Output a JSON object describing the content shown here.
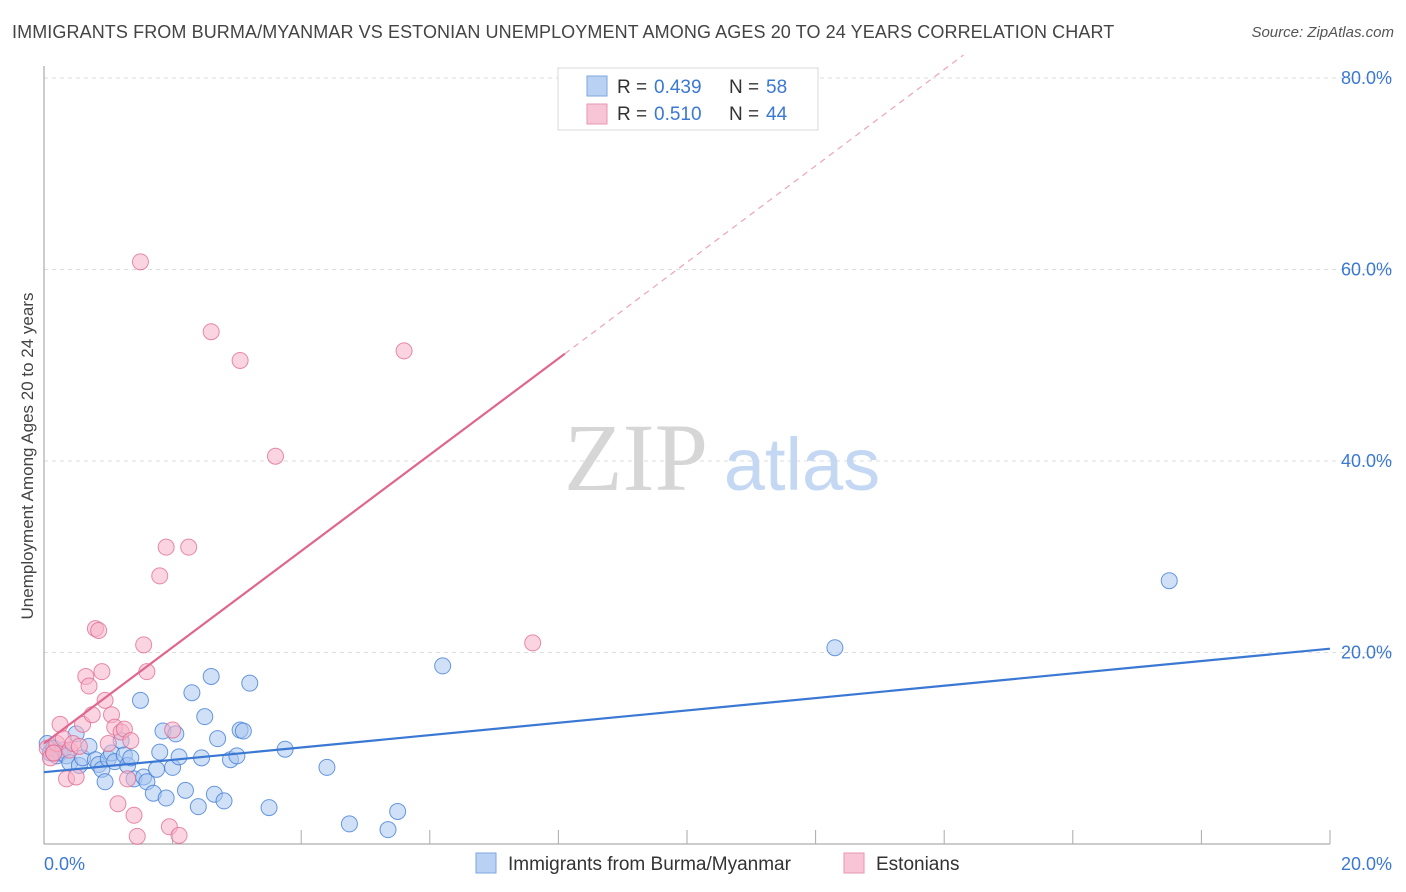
{
  "title": "IMMIGRANTS FROM BURMA/MYANMAR VS ESTONIAN UNEMPLOYMENT AMONG AGES 20 TO 24 YEARS CORRELATION CHART",
  "source": "Source: ZipAtlas.com",
  "watermark": {
    "zip": "ZIP",
    "atlas": "atlas"
  },
  "colors": {
    "blue": "#3a78d4",
    "blue_fill": "#a9c7f0",
    "pink": "#e0668f",
    "pink_fill": "#f5b3c9",
    "tick_text": "#3a78d4",
    "grid": "#dddddd"
  },
  "chart_data": {
    "type": "scatter",
    "xlabel": "",
    "ylabel": "Unemployment Among Ages 20 to 24 years",
    "xlim": [
      0,
      20
    ],
    "ylim": [
      0,
      80
    ],
    "x_tick_labels": {
      "left": "0.0%",
      "right": "20.0%"
    },
    "y_ticks": [
      {
        "value": 20,
        "label": "20.0%"
      },
      {
        "value": 40,
        "label": "40.0%"
      },
      {
        "value": 60,
        "label": "60.0%"
      },
      {
        "value": 80,
        "label": "80.0%"
      }
    ],
    "legend_stats": [
      {
        "r_label": "R =",
        "r_value": "0.439",
        "n_label": "N =",
        "n_value": "58"
      },
      {
        "r_label": "R =",
        "r_value": "0.510",
        "n_label": "N =",
        "n_value": "44"
      }
    ],
    "series": [
      {
        "name": "Immigrants from Burma/Myanmar",
        "color": "blue",
        "trend": {
          "x0": 0,
          "y0": 7.5,
          "x1": 20,
          "y1": 20.4,
          "dashed_to": null
        },
        "points": [
          [
            0.05,
            10.5
          ],
          [
            0.1,
            9.5
          ],
          [
            0.15,
            10.0
          ],
          [
            0.2,
            9.2
          ],
          [
            0.25,
            9.5
          ],
          [
            0.3,
            9.8
          ],
          [
            0.35,
            9.2
          ],
          [
            0.4,
            8.5
          ],
          [
            0.5,
            11.5
          ],
          [
            0.55,
            8.2
          ],
          [
            0.6,
            9.0
          ],
          [
            0.7,
            10.2
          ],
          [
            0.8,
            8.8
          ],
          [
            0.85,
            8.3
          ],
          [
            0.9,
            7.8
          ],
          [
            0.95,
            6.5
          ],
          [
            1.0,
            8.9
          ],
          [
            1.05,
            9.5
          ],
          [
            1.1,
            8.6
          ],
          [
            1.2,
            10.8
          ],
          [
            1.25,
            9.3
          ],
          [
            1.3,
            8.2
          ],
          [
            1.35,
            9.0
          ],
          [
            1.4,
            6.8
          ],
          [
            1.5,
            15.0
          ],
          [
            1.55,
            7.0
          ],
          [
            1.6,
            6.5
          ],
          [
            1.7,
            5.3
          ],
          [
            1.75,
            7.8
          ],
          [
            1.8,
            9.6
          ],
          [
            1.85,
            11.8
          ],
          [
            1.9,
            4.8
          ],
          [
            2.0,
            8.0
          ],
          [
            2.05,
            11.5
          ],
          [
            2.1,
            9.1
          ],
          [
            2.2,
            5.6
          ],
          [
            2.3,
            15.8
          ],
          [
            2.4,
            3.9
          ],
          [
            2.45,
            9.0
          ],
          [
            2.5,
            13.3
          ],
          [
            2.6,
            17.5
          ],
          [
            2.65,
            5.2
          ],
          [
            2.7,
            11.0
          ],
          [
            2.8,
            4.5
          ],
          [
            2.9,
            8.8
          ],
          [
            3.0,
            9.2
          ],
          [
            3.05,
            11.9
          ],
          [
            3.1,
            11.8
          ],
          [
            3.2,
            16.8
          ],
          [
            3.5,
            3.8
          ],
          [
            3.75,
            9.9
          ],
          [
            4.4,
            8.0
          ],
          [
            4.75,
            2.1
          ],
          [
            5.35,
            1.5
          ],
          [
            5.5,
            3.4
          ],
          [
            6.2,
            18.6
          ],
          [
            12.3,
            20.5
          ],
          [
            17.5,
            27.5
          ]
        ]
      },
      {
        "name": "Estonians",
        "color": "pink",
        "trend": {
          "x0": 0,
          "y0": 10.5,
          "x1": 8.1,
          "y1": 51.2,
          "dashed_to": {
            "x": 14.3,
            "y": 82.4
          }
        },
        "points": [
          [
            0.05,
            10.0
          ],
          [
            0.1,
            9.0
          ],
          [
            0.15,
            9.5
          ],
          [
            0.2,
            10.5
          ],
          [
            0.25,
            12.5
          ],
          [
            0.3,
            11.0
          ],
          [
            0.35,
            6.8
          ],
          [
            0.4,
            9.8
          ],
          [
            0.45,
            10.5
          ],
          [
            0.5,
            7.0
          ],
          [
            0.55,
            10.2
          ],
          [
            0.6,
            12.5
          ],
          [
            0.65,
            17.5
          ],
          [
            0.7,
            16.5
          ],
          [
            0.75,
            13.5
          ],
          [
            0.8,
            22.5
          ],
          [
            0.85,
            22.3
          ],
          [
            0.9,
            18.0
          ],
          [
            0.95,
            15.0
          ],
          [
            1.0,
            10.5
          ],
          [
            1.05,
            13.5
          ],
          [
            1.1,
            12.2
          ],
          [
            1.15,
            4.2
          ],
          [
            1.2,
            11.7
          ],
          [
            1.25,
            12.0
          ],
          [
            1.3,
            6.8
          ],
          [
            1.35,
            10.8
          ],
          [
            1.4,
            3.0
          ],
          [
            1.45,
            0.8
          ],
          [
            1.5,
            60.8
          ],
          [
            1.55,
            20.8
          ],
          [
            1.6,
            18.0
          ],
          [
            1.8,
            28.0
          ],
          [
            1.9,
            31.0
          ],
          [
            1.95,
            1.8
          ],
          [
            2.0,
            11.9
          ],
          [
            2.1,
            0.9
          ],
          [
            2.25,
            31.0
          ],
          [
            2.6,
            53.5
          ],
          [
            3.05,
            50.5
          ],
          [
            3.6,
            40.5
          ],
          [
            5.6,
            51.5
          ],
          [
            7.6,
            21.0
          ],
          [
            0.15,
            9.5
          ]
        ]
      }
    ]
  }
}
